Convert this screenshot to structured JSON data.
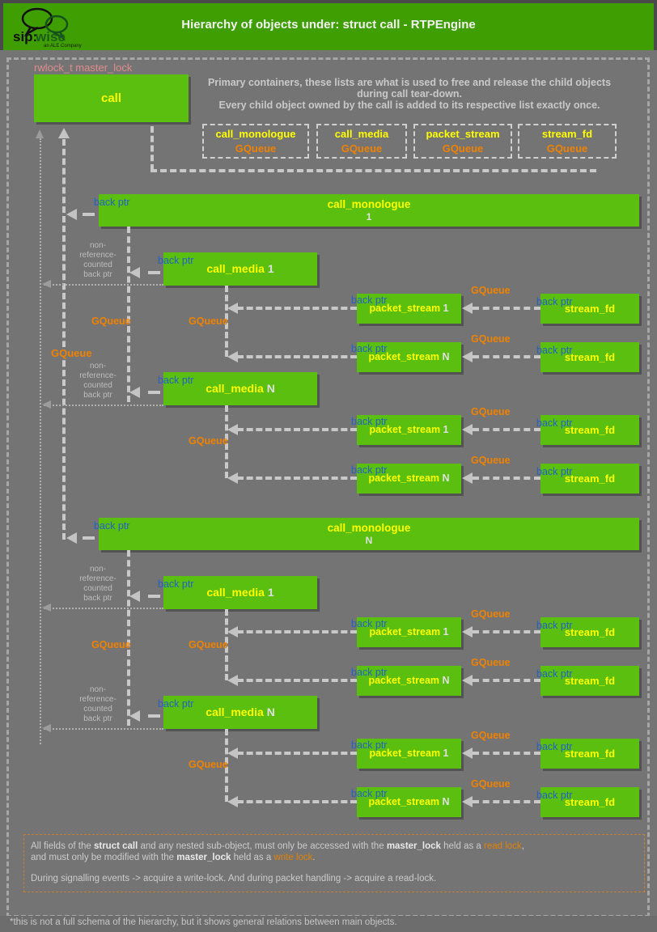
{
  "header": {
    "title": "Hierarchy of objects under: struct call - RTPEngine",
    "logo": {
      "sip": "sip:",
      "wise": "wise",
      "sub": "an ALE Company"
    }
  },
  "top": {
    "rwlock_label": "rwlock_t master_lock",
    "call_label": "call",
    "intro_line1": "Primary containers, these lists are what is used to free and release the child objects",
    "intro_line2": "during call tear-down.",
    "intro_line3": "Every child object owned by the call is added to its respective list exactly once.",
    "containers": [
      {
        "name": "call_monologue",
        "type": "GQueue"
      },
      {
        "name": "call_media",
        "type": "GQueue"
      },
      {
        "name": "packet_stream",
        "type": "GQueue"
      },
      {
        "name": "stream_fd",
        "type": "GQueue"
      }
    ]
  },
  "labels": {
    "back_ptr": "back ptr",
    "gqueue": "GQueue",
    "non_ref": [
      "non-",
      "reference-",
      "counted",
      "back ptr"
    ]
  },
  "groups": [
    {
      "monologue": {
        "name": "call_monologue",
        "num": "1"
      },
      "medias": [
        {
          "name": "call_media",
          "num": "1",
          "streams": [
            {
              "ps_name": "packet_stream",
              "ps_num": "1",
              "sf_name": "stream_fd"
            },
            {
              "ps_name": "packet_stream",
              "ps_num": "N",
              "sf_name": "stream_fd"
            }
          ]
        },
        {
          "name": "call_media",
          "num": "N",
          "streams": [
            {
              "ps_name": "packet_stream",
              "ps_num": "1",
              "sf_name": "stream_fd"
            },
            {
              "ps_name": "packet_stream",
              "ps_num": "N",
              "sf_name": "stream_fd"
            }
          ]
        }
      ]
    },
    {
      "monologue": {
        "name": "call_monologue",
        "num": "N"
      },
      "medias": [
        {
          "name": "call_media",
          "num": "1",
          "streams": [
            {
              "ps_name": "packet_stream",
              "ps_num": "1",
              "sf_name": "stream_fd"
            },
            {
              "ps_name": "packet_stream",
              "ps_num": "N",
              "sf_name": "stream_fd"
            }
          ]
        },
        {
          "name": "call_media",
          "num": "N",
          "streams": [
            {
              "ps_name": "packet_stream",
              "ps_num": "1",
              "sf_name": "stream_fd"
            },
            {
              "ps_name": "packet_stream",
              "ps_num": "N",
              "sf_name": "stream_fd"
            }
          ]
        }
      ]
    }
  ],
  "notes": {
    "line1": [
      "All fields of the ",
      "struct call",
      " and any nested sub-object, must only be accessed with the ",
      "master_lock",
      " held as a ",
      "read lock",
      ","
    ],
    "line2": [
      "and must only be modified with the ",
      "master_lock",
      " held as a ",
      "write lock",
      "."
    ],
    "line3": "During signalling events -> acquire a write-lock. And during packet handling -> acquire a read-lock."
  },
  "footnote": "*this is not a full schema of the hierarchy, but it shows general relations between main objects.",
  "colors": {
    "header_green": "#3f9e02",
    "box_green": "#5abf0f",
    "yellow": "#ffff00",
    "orange": "#f08200",
    "back_ptr_blue": "#2361c4",
    "rwlock_salmon": "#e18b8b",
    "background_gray": "#747474"
  }
}
